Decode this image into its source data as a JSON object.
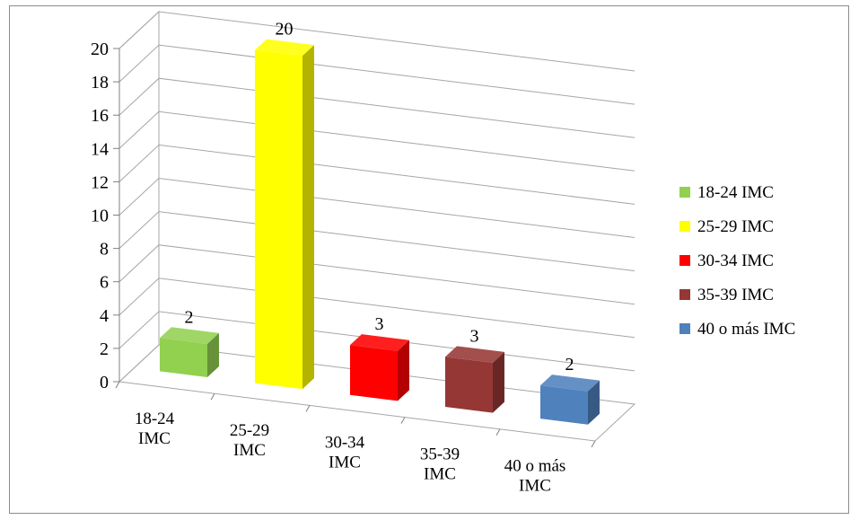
{
  "chart_data": {
    "type": "bar",
    "title": "",
    "xlabel": "",
    "ylabel": "",
    "ylim": [
      0,
      20
    ],
    "y_ticks": [
      0,
      2,
      4,
      6,
      8,
      10,
      12,
      14,
      16,
      18,
      20
    ],
    "grid": true,
    "legend_position": "right",
    "categories": [
      {
        "lines": [
          "18-24",
          "IMC"
        ]
      },
      {
        "lines": [
          "25-29",
          "IMC"
        ]
      },
      {
        "lines": [
          "30-34",
          "IMC"
        ]
      },
      {
        "lines": [
          "35-39",
          "IMC"
        ]
      },
      {
        "lines": [
          "40 o más",
          "IMC"
        ]
      }
    ],
    "series": [
      {
        "name": "18-24 IMC",
        "value": 2,
        "color": "#92D050"
      },
      {
        "name": "25-29 IMC",
        "value": 20,
        "color": "#FFFF00"
      },
      {
        "name": "30-34 IMC",
        "value": 3,
        "color": "#FF0000"
      },
      {
        "name": "35-39 IMC",
        "value": 3,
        "color": "#953735"
      },
      {
        "name": "40 o más IMC",
        "value": 2,
        "color": "#4F81BD"
      }
    ]
  }
}
